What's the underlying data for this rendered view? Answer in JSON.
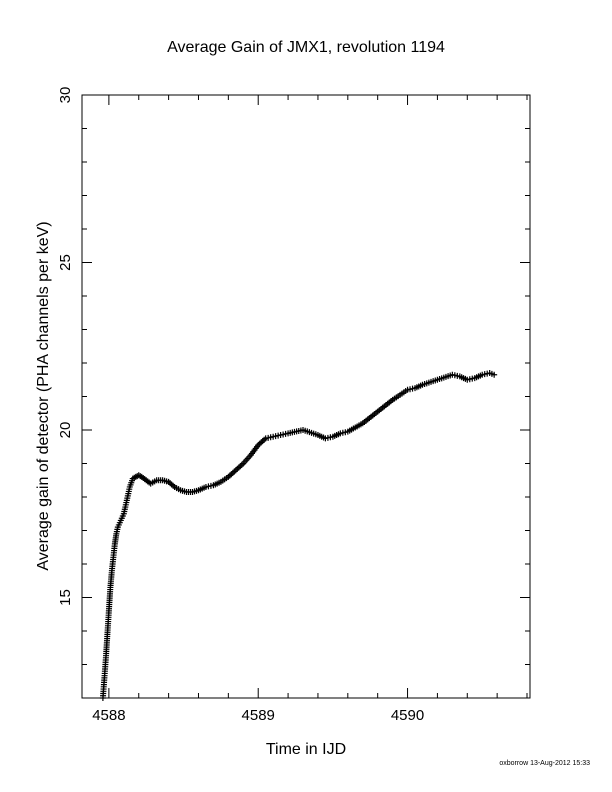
{
  "chart_data": {
    "type": "scatter",
    "title": "Average Gain of JMX1, revolution 1194",
    "xlabel": "Time in IJD",
    "ylabel": "Average gain of detector (PHA channels per keV)",
    "xlim": [
      4587.82,
      4590.82
    ],
    "ylim": [
      12,
      30
    ],
    "xticks": [
      4588,
      4589,
      4590
    ],
    "yticks": [
      15,
      20,
      25,
      30
    ],
    "marker": "+",
    "color": "#000000",
    "grid": false,
    "series": [
      {
        "x": [
          4587.96,
          4587.97,
          4587.98,
          4587.99,
          4588.0,
          4588.01,
          4588.02,
          4588.03,
          4588.04,
          4588.05,
          4588.06,
          4588.08,
          4588.1,
          4588.12,
          4588.14,
          4588.16,
          4588.18,
          4588.2,
          4588.22,
          4588.25,
          4588.28,
          4588.32,
          4588.36,
          4588.4,
          4588.44,
          4588.48,
          4588.52,
          4588.56,
          4588.6,
          4588.65,
          4588.7,
          4588.75,
          4588.8,
          4588.85,
          4588.9,
          4588.95,
          4589.0,
          4589.05,
          4589.1,
          4589.15,
          4589.2,
          4589.3,
          4589.4,
          4589.45,
          4589.5,
          4589.55,
          4589.6,
          4589.7,
          4589.8,
          4589.9,
          4590.0,
          4590.05,
          4590.1,
          4590.2,
          4590.3,
          4590.35,
          4590.4,
          4590.45,
          4590.5,
          4590.55,
          4590.58
        ],
        "y": [
          12.0,
          12.6,
          13.2,
          13.9,
          14.6,
          15.3,
          15.8,
          16.2,
          16.6,
          16.9,
          17.1,
          17.3,
          17.5,
          17.9,
          18.3,
          18.55,
          18.6,
          18.65,
          18.6,
          18.5,
          18.4,
          18.5,
          18.5,
          18.45,
          18.3,
          18.2,
          18.15,
          18.15,
          18.2,
          18.3,
          18.35,
          18.45,
          18.6,
          18.8,
          19.0,
          19.25,
          19.55,
          19.75,
          19.8,
          19.85,
          19.9,
          20.0,
          19.85,
          19.75,
          19.8,
          19.9,
          19.95,
          20.2,
          20.55,
          20.9,
          21.2,
          21.25,
          21.35,
          21.5,
          21.65,
          21.6,
          21.5,
          21.55,
          21.65,
          21.7,
          21.65
        ]
      }
    ]
  },
  "footer": "oxborrow 13-Aug-2012 15:33"
}
